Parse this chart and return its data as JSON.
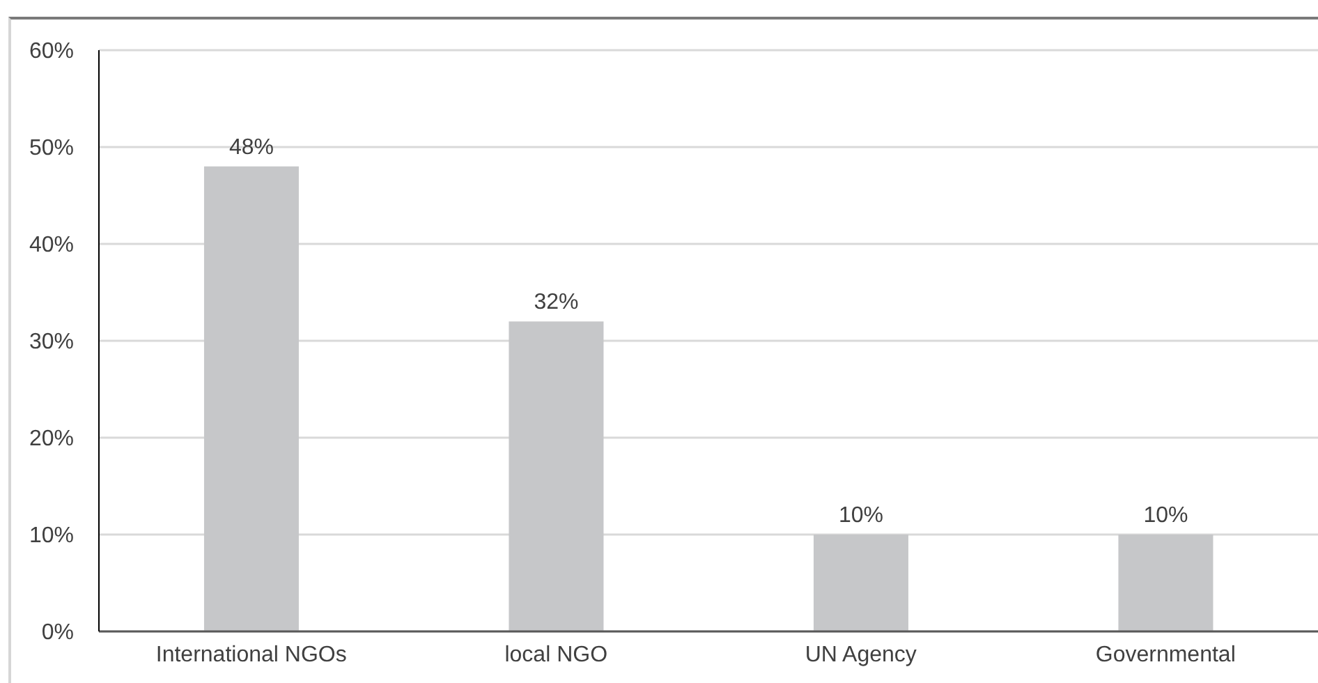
{
  "chart_data": {
    "type": "bar",
    "categories": [
      "International NGOs",
      "local NGO",
      "UN Agency",
      "Governmental"
    ],
    "values": [
      48,
      32,
      10,
      10
    ],
    "color": "#c6c7c9",
    "value_labels": [
      "48%",
      "32%",
      "10%",
      "10%"
    ],
    "ylim": [
      0,
      60
    ],
    "yticks": [
      {
        "value": 0,
        "label": "0%"
      },
      {
        "value": 10,
        "label": "10%"
      },
      {
        "value": 20,
        "label": "20%"
      },
      {
        "value": 30,
        "label": "30%"
      },
      {
        "value": 40,
        "label": "40%"
      },
      {
        "value": 50,
        "label": "50%"
      },
      {
        "value": 60,
        "label": "60%"
      }
    ],
    "grid": "y"
  }
}
